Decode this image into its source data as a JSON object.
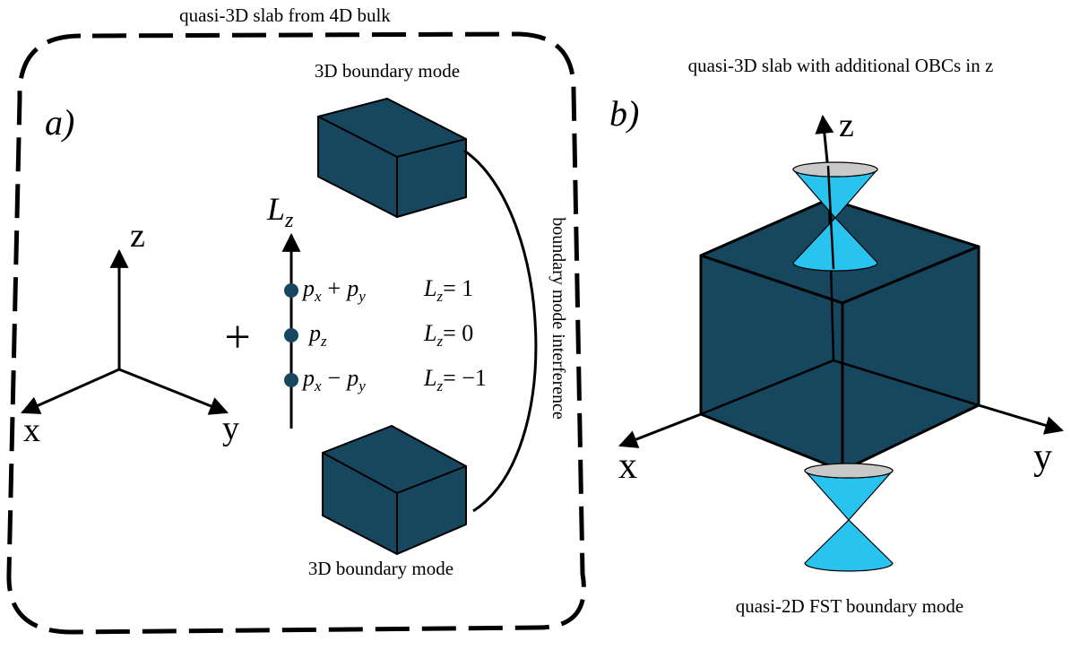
{
  "panel_a": {
    "title": "quasi-3D slab from 4D bulk",
    "label": "a)",
    "top_cube_caption": "3D boundary mode",
    "bottom_cube_caption": "3D boundary mode",
    "interference_label": "boundary mode interference",
    "plus_sign": "+",
    "axes": {
      "z": "z",
      "x": "x",
      "y": "y"
    },
    "lz_axis": {
      "symbol": "L",
      "subscript": "z"
    },
    "orbitals": [
      {
        "p1": "p",
        "s1": "x",
        "op": "+",
        "p2": "p",
        "s2": "y",
        "lz_symbol": "L",
        "lz_sub": "z",
        "lz_value": "= 1"
      },
      {
        "p1": "p",
        "s1": "z",
        "op": "",
        "p2": "",
        "s2": "",
        "lz_symbol": "L",
        "lz_sub": "z",
        "lz_value": "= 0"
      },
      {
        "p1": "p",
        "s1": "x",
        "op": "−",
        "p2": "p",
        "s2": "y",
        "lz_symbol": "L",
        "lz_sub": "z",
        "lz_value": "= −1"
      }
    ]
  },
  "panel_b": {
    "title": "quasi-3D slab with additional OBCs in z",
    "label": "b)",
    "axes": {
      "z": "z",
      "x": "x",
      "y": "y"
    },
    "bottom_caption": "quasi-2D FST boundary mode"
  },
  "colors": {
    "cube_face": "#16475f",
    "cone": "#29c3f0",
    "cone_rim": "#c9c9c9",
    "dot": "#16475f"
  }
}
